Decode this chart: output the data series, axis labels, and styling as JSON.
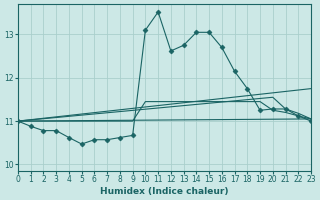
{
  "xlabel": "Humidex (Indice chaleur)",
  "xlim": [
    0,
    23
  ],
  "ylim": [
    9.85,
    13.7
  ],
  "yticks": [
    10,
    11,
    12,
    13
  ],
  "xticks": [
    0,
    1,
    2,
    3,
    4,
    5,
    6,
    7,
    8,
    9,
    10,
    11,
    12,
    13,
    14,
    15,
    16,
    17,
    18,
    19,
    20,
    21,
    22,
    23
  ],
  "bg_color": "#cce8e6",
  "grid_color": "#aacfcc",
  "line_color": "#1a6464",
  "lines": [
    {
      "x": [
        0,
        1,
        2,
        3,
        4,
        5,
        6,
        7,
        8,
        9,
        10,
        11,
        12,
        13,
        14,
        15,
        16,
        17,
        18,
        19,
        20,
        21,
        22,
        23
      ],
      "y": [
        11.0,
        10.88,
        10.78,
        10.78,
        10.62,
        10.47,
        10.57,
        10.57,
        10.62,
        10.67,
        13.1,
        13.52,
        12.62,
        12.75,
        13.05,
        13.05,
        12.7,
        12.15,
        11.75,
        11.25,
        11.28,
        11.28,
        11.12,
        11.0
      ],
      "marker": "D",
      "markersize": 2.5,
      "lw": 0.8
    },
    {
      "x": [
        0,
        23
      ],
      "y": [
        11.0,
        11.75
      ],
      "marker": null,
      "markersize": 0,
      "lw": 0.8
    },
    {
      "x": [
        0,
        20,
        21,
        22,
        23
      ],
      "y": [
        11.0,
        11.55,
        11.28,
        11.18,
        11.05
      ],
      "marker": null,
      "markersize": 0,
      "lw": 0.8
    },
    {
      "x": [
        0,
        9,
        10,
        19,
        20,
        21,
        22,
        23
      ],
      "y": [
        11.0,
        11.0,
        11.45,
        11.45,
        11.25,
        11.2,
        11.12,
        11.05
      ],
      "marker": null,
      "markersize": 0,
      "lw": 0.8
    },
    {
      "x": [
        0,
        23
      ],
      "y": [
        11.0,
        11.05
      ],
      "marker": null,
      "markersize": 0,
      "lw": 0.8
    }
  ]
}
